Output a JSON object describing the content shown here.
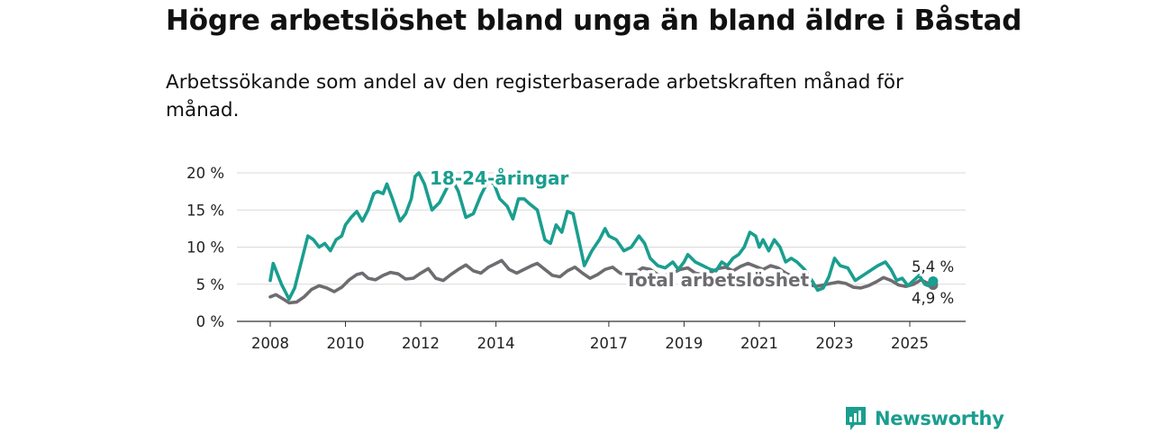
{
  "header": {
    "title": "Högre arbetslöshet bland unga än bland äldre i Båstad",
    "subtitle": "Arbetssökande som andel av den registerbaserade arbetskraften månad för månad."
  },
  "brand": {
    "name": "Newsworthy",
    "icon": "newsworthy-logo-icon",
    "color": "#1a9e8f"
  },
  "chart_data": {
    "type": "line",
    "title": "Högre arbetslöshet bland unga än bland äldre i Båstad",
    "subtitle": "Arbetssökande som andel av den registerbaserade arbetskraften månad för månad.",
    "xlim": [
      2008,
      2025.7
    ],
    "ylim": [
      0,
      20
    ],
    "y_ticks": [
      0,
      5,
      10,
      15,
      20
    ],
    "y_tick_labels": [
      "0 %",
      "5 %",
      "10 %",
      "15 %",
      "20 %"
    ],
    "x_ticks": [
      2008,
      2010,
      2012,
      2014,
      2017,
      2019,
      2021,
      2023,
      2025
    ],
    "x_tick_labels": [
      "2008",
      "2010",
      "2012",
      "2014",
      "2017",
      "2019",
      "2021",
      "2023",
      "2025"
    ],
    "grid": "horizontal",
    "series": [
      {
        "name": "18-24-åringar",
        "color": "#1a9e8f",
        "end_label": "5,4 %",
        "points": [
          [
            2008.0,
            5.5
          ],
          [
            2008.08,
            7.8
          ],
          [
            2008.3,
            5.0
          ],
          [
            2008.5,
            3.0
          ],
          [
            2008.65,
            4.5
          ],
          [
            2008.85,
            8.5
          ],
          [
            2009.0,
            11.5
          ],
          [
            2009.15,
            11.0
          ],
          [
            2009.3,
            10.0
          ],
          [
            2009.45,
            10.5
          ],
          [
            2009.6,
            9.5
          ],
          [
            2009.75,
            11.0
          ],
          [
            2009.9,
            11.5
          ],
          [
            2010.0,
            13.0
          ],
          [
            2010.15,
            14.0
          ],
          [
            2010.3,
            14.8
          ],
          [
            2010.45,
            13.5
          ],
          [
            2010.6,
            15.0
          ],
          [
            2010.75,
            17.2
          ],
          [
            2010.85,
            17.5
          ],
          [
            2011.0,
            17.2
          ],
          [
            2011.1,
            18.5
          ],
          [
            2011.25,
            16.5
          ],
          [
            2011.45,
            13.5
          ],
          [
            2011.6,
            14.5
          ],
          [
            2011.75,
            16.5
          ],
          [
            2011.85,
            19.5
          ],
          [
            2011.95,
            20.0
          ],
          [
            2012.1,
            18.5
          ],
          [
            2012.3,
            15.0
          ],
          [
            2012.5,
            16.0
          ],
          [
            2012.7,
            18.0
          ],
          [
            2012.85,
            19.0
          ],
          [
            2013.0,
            17.5
          ],
          [
            2013.2,
            14.0
          ],
          [
            2013.4,
            14.5
          ],
          [
            2013.6,
            17.0
          ],
          [
            2013.8,
            19.0
          ],
          [
            2013.95,
            18.5
          ],
          [
            2014.1,
            16.5
          ],
          [
            2014.3,
            15.5
          ],
          [
            2014.45,
            13.8
          ],
          [
            2014.6,
            16.5
          ],
          [
            2014.75,
            16.5
          ],
          [
            2014.9,
            15.8
          ],
          [
            2015.1,
            15.0
          ],
          [
            2015.3,
            11.0
          ],
          [
            2015.45,
            10.5
          ],
          [
            2015.6,
            13.0
          ],
          [
            2015.75,
            12.0
          ],
          [
            2015.9,
            14.8
          ],
          [
            2016.05,
            14.5
          ],
          [
            2016.2,
            11.0
          ],
          [
            2016.35,
            7.5
          ],
          [
            2016.55,
            9.5
          ],
          [
            2016.75,
            11.0
          ],
          [
            2016.9,
            12.5
          ],
          [
            2017.0,
            11.5
          ],
          [
            2017.2,
            11.0
          ],
          [
            2017.4,
            9.5
          ],
          [
            2017.6,
            10.0
          ],
          [
            2017.8,
            11.5
          ],
          [
            2017.95,
            10.5
          ],
          [
            2018.1,
            8.5
          ],
          [
            2018.3,
            7.5
          ],
          [
            2018.5,
            7.2
          ],
          [
            2018.7,
            8.0
          ],
          [
            2018.85,
            7.0
          ],
          [
            2019.0,
            8.0
          ],
          [
            2019.1,
            9.0
          ],
          [
            2019.3,
            8.0
          ],
          [
            2019.5,
            7.5
          ],
          [
            2019.7,
            7.0
          ],
          [
            2019.85,
            6.8
          ],
          [
            2020.0,
            8.0
          ],
          [
            2020.15,
            7.5
          ],
          [
            2020.3,
            8.5
          ],
          [
            2020.45,
            9.0
          ],
          [
            2020.6,
            10.0
          ],
          [
            2020.75,
            12.0
          ],
          [
            2020.9,
            11.5
          ],
          [
            2021.0,
            10.0
          ],
          [
            2021.1,
            11.0
          ],
          [
            2021.25,
            9.5
          ],
          [
            2021.4,
            11.0
          ],
          [
            2021.55,
            10.0
          ],
          [
            2021.7,
            8.0
          ],
          [
            2021.85,
            8.5
          ],
          [
            2022.0,
            8.0
          ],
          [
            2022.2,
            7.0
          ],
          [
            2022.4,
            5.5
          ],
          [
            2022.55,
            4.2
          ],
          [
            2022.7,
            4.5
          ],
          [
            2022.85,
            6.0
          ],
          [
            2023.0,
            8.5
          ],
          [
            2023.15,
            7.5
          ],
          [
            2023.35,
            7.2
          ],
          [
            2023.55,
            5.5
          ],
          [
            2023.7,
            6.0
          ],
          [
            2023.85,
            6.5
          ],
          [
            2024.0,
            7.0
          ],
          [
            2024.15,
            7.5
          ],
          [
            2024.35,
            8.0
          ],
          [
            2024.5,
            7.0
          ],
          [
            2024.65,
            5.5
          ],
          [
            2024.8,
            5.8
          ],
          [
            2024.95,
            4.8
          ],
          [
            2025.1,
            5.5
          ],
          [
            2025.25,
            6.2
          ],
          [
            2025.4,
            5.0
          ],
          [
            2025.5,
            4.8
          ],
          [
            2025.62,
            5.4
          ]
        ]
      },
      {
        "name": "Total arbetslöshet",
        "color": "#6e6c70",
        "end_label": "4,9 %",
        "points": [
          [
            2008.0,
            3.3
          ],
          [
            2008.15,
            3.6
          ],
          [
            2008.35,
            3.0
          ],
          [
            2008.5,
            2.5
          ],
          [
            2008.7,
            2.6
          ],
          [
            2008.9,
            3.3
          ],
          [
            2009.1,
            4.3
          ],
          [
            2009.3,
            4.8
          ],
          [
            2009.5,
            4.5
          ],
          [
            2009.7,
            4.0
          ],
          [
            2009.9,
            4.6
          ],
          [
            2010.1,
            5.6
          ],
          [
            2010.3,
            6.3
          ],
          [
            2010.45,
            6.5
          ],
          [
            2010.6,
            5.8
          ],
          [
            2010.8,
            5.6
          ],
          [
            2011.0,
            6.2
          ],
          [
            2011.2,
            6.6
          ],
          [
            2011.4,
            6.4
          ],
          [
            2011.6,
            5.7
          ],
          [
            2011.8,
            5.8
          ],
          [
            2012.0,
            6.5
          ],
          [
            2012.2,
            7.1
          ],
          [
            2012.4,
            5.8
          ],
          [
            2012.6,
            5.5
          ],
          [
            2012.8,
            6.3
          ],
          [
            2013.0,
            7.0
          ],
          [
            2013.2,
            7.6
          ],
          [
            2013.4,
            6.8
          ],
          [
            2013.6,
            6.5
          ],
          [
            2013.8,
            7.3
          ],
          [
            2014.0,
            7.8
          ],
          [
            2014.15,
            8.2
          ],
          [
            2014.35,
            7.0
          ],
          [
            2014.55,
            6.5
          ],
          [
            2014.75,
            7.0
          ],
          [
            2014.95,
            7.5
          ],
          [
            2015.1,
            7.8
          ],
          [
            2015.3,
            7.0
          ],
          [
            2015.5,
            6.2
          ],
          [
            2015.7,
            6.0
          ],
          [
            2015.9,
            6.8
          ],
          [
            2016.1,
            7.3
          ],
          [
            2016.3,
            6.5
          ],
          [
            2016.5,
            5.8
          ],
          [
            2016.7,
            6.3
          ],
          [
            2016.9,
            7.0
          ],
          [
            2017.1,
            7.3
          ],
          [
            2017.3,
            6.5
          ],
          [
            2017.5,
            6.2
          ],
          [
            2017.7,
            6.6
          ],
          [
            2017.9,
            7.2
          ],
          [
            2018.1,
            7.0
          ],
          [
            2018.3,
            6.3
          ],
          [
            2018.5,
            6.2
          ],
          [
            2018.7,
            6.5
          ],
          [
            2018.9,
            7.0
          ],
          [
            2019.1,
            7.2
          ],
          [
            2019.3,
            6.5
          ],
          [
            2019.5,
            6.3
          ],
          [
            2019.7,
            6.6
          ],
          [
            2019.9,
            7.1
          ],
          [
            2020.1,
            7.3
          ],
          [
            2020.3,
            6.8
          ],
          [
            2020.5,
            7.4
          ],
          [
            2020.7,
            7.8
          ],
          [
            2020.9,
            7.4
          ],
          [
            2021.1,
            7.0
          ],
          [
            2021.3,
            7.5
          ],
          [
            2021.5,
            7.2
          ],
          [
            2021.7,
            6.5
          ],
          [
            2021.9,
            6.0
          ],
          [
            2022.1,
            5.6
          ],
          [
            2022.3,
            5.0
          ],
          [
            2022.5,
            4.7
          ],
          [
            2022.7,
            4.9
          ],
          [
            2022.9,
            5.1
          ],
          [
            2023.1,
            5.3
          ],
          [
            2023.3,
            5.1
          ],
          [
            2023.5,
            4.6
          ],
          [
            2023.7,
            4.5
          ],
          [
            2023.9,
            4.8
          ],
          [
            2024.1,
            5.3
          ],
          [
            2024.3,
            5.9
          ],
          [
            2024.5,
            5.5
          ],
          [
            2024.7,
            4.9
          ],
          [
            2024.9,
            4.7
          ],
          [
            2025.1,
            5.0
          ],
          [
            2025.3,
            5.6
          ],
          [
            2025.45,
            5.2
          ],
          [
            2025.62,
            4.9
          ]
        ]
      }
    ]
  }
}
